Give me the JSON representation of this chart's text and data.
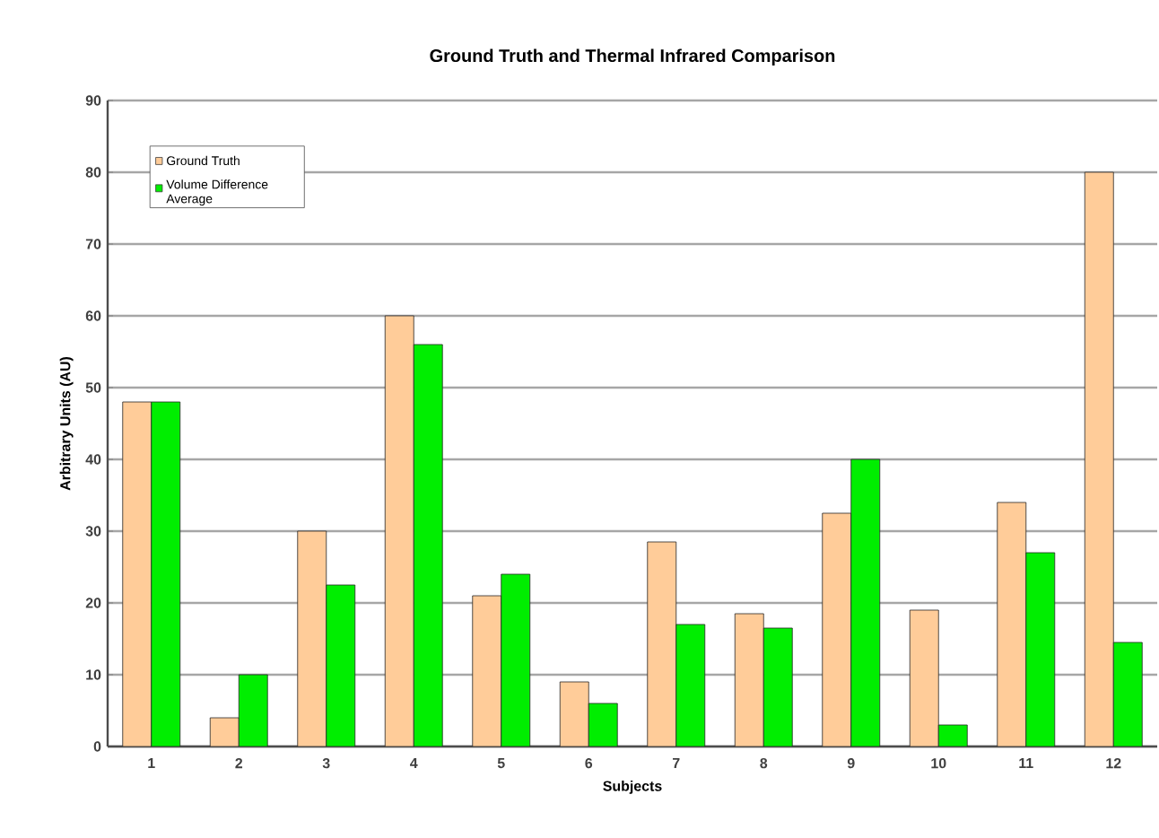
{
  "chart_data": {
    "type": "bar",
    "title": "Ground Truth and Thermal Infrared Comparison",
    "xlabel": "Subjects",
    "ylabel": "Arbitrary Units (AU)",
    "categories": [
      "1",
      "2",
      "3",
      "4",
      "5",
      "6",
      "7",
      "8",
      "9",
      "10",
      "11",
      "12"
    ],
    "series": [
      {
        "name": "Ground Truth",
        "color": "#ffcc99",
        "values": [
          48,
          4,
          30,
          60,
          21,
          9,
          28.5,
          18.5,
          32.5,
          19,
          34,
          80
        ]
      },
      {
        "name": "Volume Difference Average",
        "color": "#00ee00",
        "values": [
          48,
          10,
          22.5,
          56,
          24,
          6,
          17,
          16.5,
          40,
          3,
          27,
          14.5
        ]
      }
    ],
    "ylim": [
      0,
      90
    ],
    "yticks": [
      0,
      10,
      20,
      30,
      40,
      50,
      60,
      70,
      80,
      90
    ],
    "grid": "y",
    "legend": "top left"
  }
}
